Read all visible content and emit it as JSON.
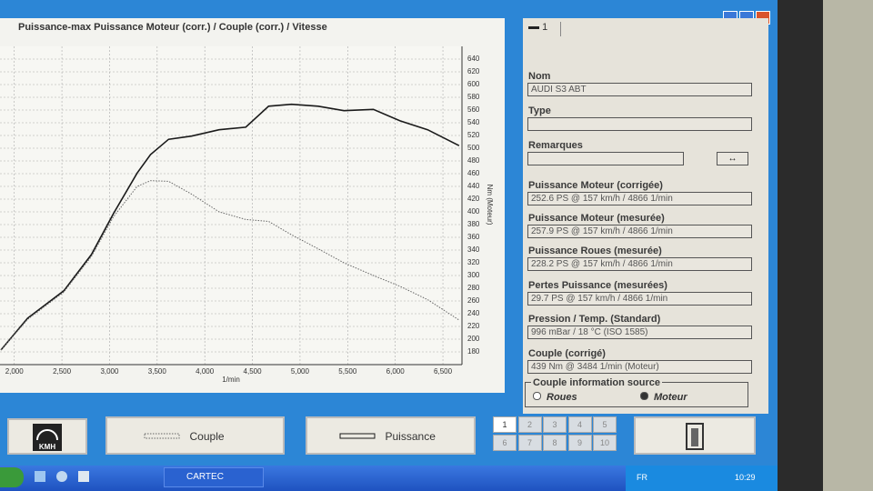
{
  "chart_data": {
    "type": "line",
    "title": "Puissance-max Puissance Moteur (corr.) / Couple (corr.) / Vitesse",
    "x_label": "1/min",
    "y_label": "Nm (Moteur)",
    "x": [
      1860,
      2140,
      2520,
      2810,
      3040,
      3290,
      3430,
      3620,
      3860,
      4150,
      4430,
      4670,
      4910,
      5190,
      5460,
      5770,
      6050,
      6340,
      6670
    ],
    "series": [
      {
        "name": "Puissance",
        "color": "#1a1a1a",
        "line_style": "solid",
        "values": [
          183,
          233,
          276,
          333,
          397,
          461,
          490,
          514,
          519,
          529,
          533,
          566,
          569,
          566,
          559,
          561,
          543,
          529,
          504
        ]
      },
      {
        "name": "Couple",
        "color": "#666666",
        "line_style": "dotted",
        "values": [
          183,
          231,
          274,
          330,
          392,
          440,
          449,
          448,
          428,
          400,
          388,
          385,
          364,
          342,
          320,
          300,
          283,
          262,
          230
        ]
      }
    ],
    "xlim": [
      1850,
      6700
    ],
    "xticks": [
      {
        "value": 2000,
        "label": "2,000"
      },
      {
        "value": 2500,
        "label": "2,500"
      },
      {
        "value": 3000,
        "label": "3,000"
      },
      {
        "value": 3500,
        "label": "3,500"
      },
      {
        "value": 4000,
        "label": "4,000"
      },
      {
        "value": 4500,
        "label": "4,500"
      },
      {
        "value": 5000,
        "label": "5,000"
      },
      {
        "value": 5500,
        "label": "5,500"
      },
      {
        "value": 6000,
        "label": "6,000"
      },
      {
        "value": 6500,
        "label": "6,500"
      }
    ],
    "ylim": [
      160,
      660
    ],
    "yticks": [
      180,
      200,
      220,
      240,
      260,
      280,
      300,
      320,
      340,
      360,
      380,
      400,
      420,
      440,
      460,
      480,
      500,
      520,
      540,
      560,
      580,
      600,
      620,
      640
    ],
    "grid": true
  },
  "panel": {
    "tab": "1",
    "fields": [
      {
        "label": "Nom",
        "value": "AUDI S3 ABT"
      },
      {
        "label": "Type"
      },
      {
        "label": "Remarques"
      },
      {
        "label": "Puissance Moteur (corrigée)",
        "value": "252.6 PS @ 157 km/h / 4866 1/min"
      },
      {
        "label": "Puissance Moteur (mesurée)",
        "value": "257.9 PS @ 157 km/h / 4866 1/min"
      },
      {
        "label": "Puissance Roues (mesurée)",
        "value": "228.2 PS @ 157 km/h / 4866 1/min"
      },
      {
        "label": "Pertes Puissance (mesurées)",
        "value": "29.7 PS @ 157 km/h / 4866 1/min"
      },
      {
        "label": "Pression / Temp. (Standard)",
        "value": "996 mBar / 18 °C (ISO 1585)"
      },
      {
        "label": "Couple (corrigé)",
        "value": "439 Nm @ 3484 1/min (Moteur)"
      }
    ],
    "source": {
      "title": "Couple information source",
      "options": [
        "Roues",
        "Moteur"
      ]
    }
  },
  "toolbar": {
    "speed_icon": "KMH",
    "pages": [
      "1",
      "2",
      "3",
      "4",
      "5",
      "6",
      "7",
      "8",
      "9",
      "10"
    ]
  },
  "taskbar": {
    "app": "CARTEC",
    "lang": "FR",
    "clock": "10:29"
  }
}
